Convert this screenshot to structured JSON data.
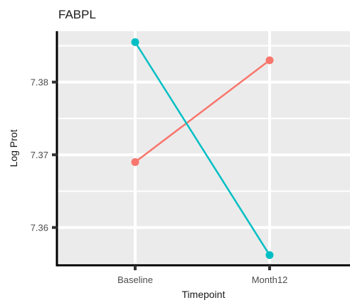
{
  "chart_data": {
    "type": "line",
    "title": "FABPL",
    "xlabel": "Timepoint",
    "ylabel": "Log Prot",
    "categories": [
      "Baseline",
      "Month12"
    ],
    "yticks": [
      7.36,
      7.37,
      7.38
    ],
    "ylim": [
      7.3548,
      7.387
    ],
    "grid": true,
    "legend": "none",
    "background_color": "#ebebeb",
    "series": [
      {
        "color": "#f8766d",
        "values": [
          7.369,
          7.383
        ]
      },
      {
        "color": "#00bfc4",
        "values": [
          7.3855,
          7.3562
        ]
      }
    ]
  }
}
